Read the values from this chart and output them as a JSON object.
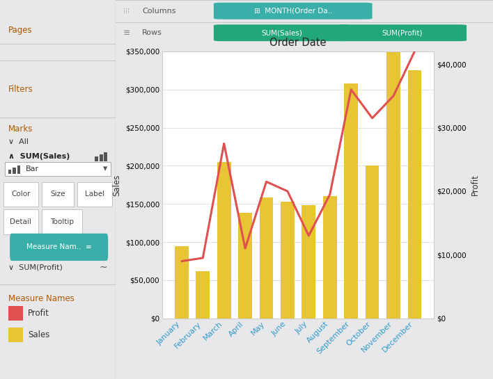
{
  "months": [
    "January",
    "February",
    "March",
    "April",
    "May",
    "June",
    "July",
    "August",
    "September",
    "October",
    "November",
    "December"
  ],
  "sales": [
    95000,
    62000,
    205000,
    138000,
    158000,
    153000,
    148000,
    160000,
    308000,
    200000,
    352000,
    325000
  ],
  "profit": [
    9000,
    9500,
    27500,
    11000,
    21500,
    20000,
    13000,
    19500,
    36000,
    31500,
    35000,
    42000
  ],
  "bar_color": "#E8C535",
  "line_color": "#E05050",
  "title": "Order Date",
  "ylabel_left": "Sales",
  "ylabel_right": "Profit",
  "ylim_left": [
    0,
    350000
  ],
  "ylim_right": [
    0,
    42000
  ],
  "left_yticks": [
    0,
    50000,
    100000,
    150000,
    200000,
    250000,
    300000,
    350000
  ],
  "right_yticks": [
    0,
    10000,
    20000,
    30000,
    40000
  ],
  "sidebar_bg": "#F0F0F2",
  "chart_bg": "#FFFFFF",
  "topbar_bg": "#F0F0F2",
  "fig_bg": "#E8E8EA"
}
